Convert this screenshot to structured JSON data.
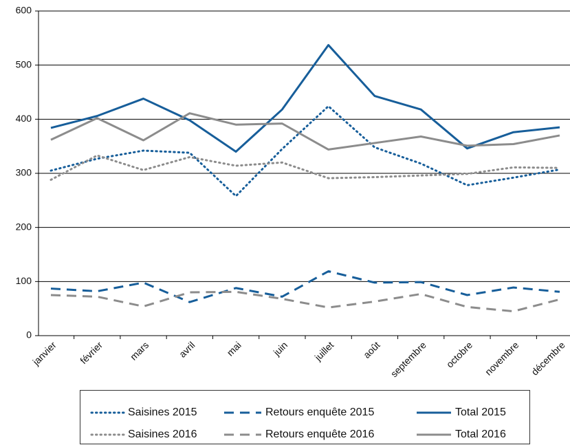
{
  "chart_data": {
    "type": "line",
    "categories": [
      "janvier",
      "février",
      "mars",
      "avril",
      "mai",
      "juin",
      "juillet",
      "août",
      "septembre",
      "octobre",
      "novembre",
      "décembre"
    ],
    "series": [
      {
        "name": "Saisines 2015",
        "color": "#175e9a",
        "style": "dotted",
        "values": [
          305,
          327,
          342,
          338,
          258,
          345,
          424,
          348,
          318,
          278,
          292,
          307
        ]
      },
      {
        "name": "Retours enquête 2015",
        "color": "#175e9a",
        "style": "dashed",
        "values": [
          87,
          82,
          98,
          62,
          88,
          72,
          119,
          98,
          99,
          75,
          89,
          81
        ]
      },
      {
        "name": "Total 2015",
        "color": "#175e9a",
        "style": "solid",
        "values": [
          384,
          406,
          438,
          398,
          340,
          418,
          537,
          443,
          418,
          346,
          376,
          385
        ]
      },
      {
        "name": "Saisines 2016",
        "color": "#8c8c8c",
        "style": "dotted",
        "values": [
          288,
          333,
          306,
          330,
          314,
          320,
          291,
          293,
          296,
          299,
          311,
          310
        ]
      },
      {
        "name": "Retours enquête 2016",
        "color": "#8c8c8c",
        "style": "dashed",
        "values": [
          75,
          72,
          54,
          80,
          81,
          68,
          52,
          63,
          77,
          53,
          45,
          67
        ]
      },
      {
        "name": "Total 2016",
        "color": "#8c8c8c",
        "style": "solid",
        "values": [
          362,
          402,
          361,
          411,
          390,
          392,
          344,
          356,
          368,
          351,
          354,
          370
        ]
      }
    ],
    "ylim": [
      0,
      600
    ],
    "yticks": [
      0,
      100,
      200,
      300,
      400,
      500,
      600
    ],
    "grid": true,
    "legend": "bottom"
  }
}
